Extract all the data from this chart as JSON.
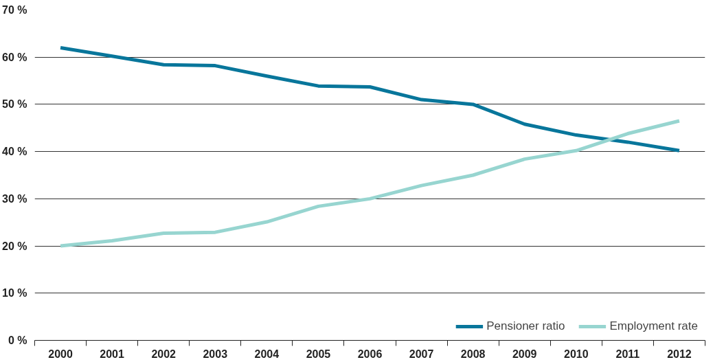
{
  "chart_data": {
    "type": "line",
    "categories": [
      "2000",
      "2001",
      "2002",
      "2003",
      "2004",
      "2005",
      "2006",
      "2007",
      "2008",
      "2009",
      "2010",
      "2011",
      "2012"
    ],
    "series": [
      {
        "name": "Pensioner ratio",
        "color": "#08769b",
        "values": [
          62.0,
          60.2,
          58.4,
          58.2,
          56.0,
          53.9,
          53.7,
          51.0,
          50.0,
          45.8,
          43.5,
          42.0,
          40.2
        ]
      },
      {
        "name": "Employment rate",
        "color": "#97d5d0",
        "values": [
          20.0,
          21.1,
          22.7,
          22.9,
          25.1,
          28.4,
          30.0,
          32.8,
          35.0,
          38.4,
          40.2,
          43.8,
          46.5
        ]
      }
    ],
    "ylim": [
      0,
      70
    ],
    "yticks": [
      {
        "value": 0,
        "label": "0 %"
      },
      {
        "value": 10,
        "label": "10 %"
      },
      {
        "value": 20,
        "label": "20 %"
      },
      {
        "value": 30,
        "label": "30 %"
      },
      {
        "value": 40,
        "label": "40 %"
      },
      {
        "value": 50,
        "label": "50 %"
      },
      {
        "value": 60,
        "label": "60 %"
      },
      {
        "value": 70,
        "label": "70 %"
      }
    ],
    "grid": "y",
    "legend": "bottom right",
    "marker": "none",
    "line_style": "solid"
  }
}
